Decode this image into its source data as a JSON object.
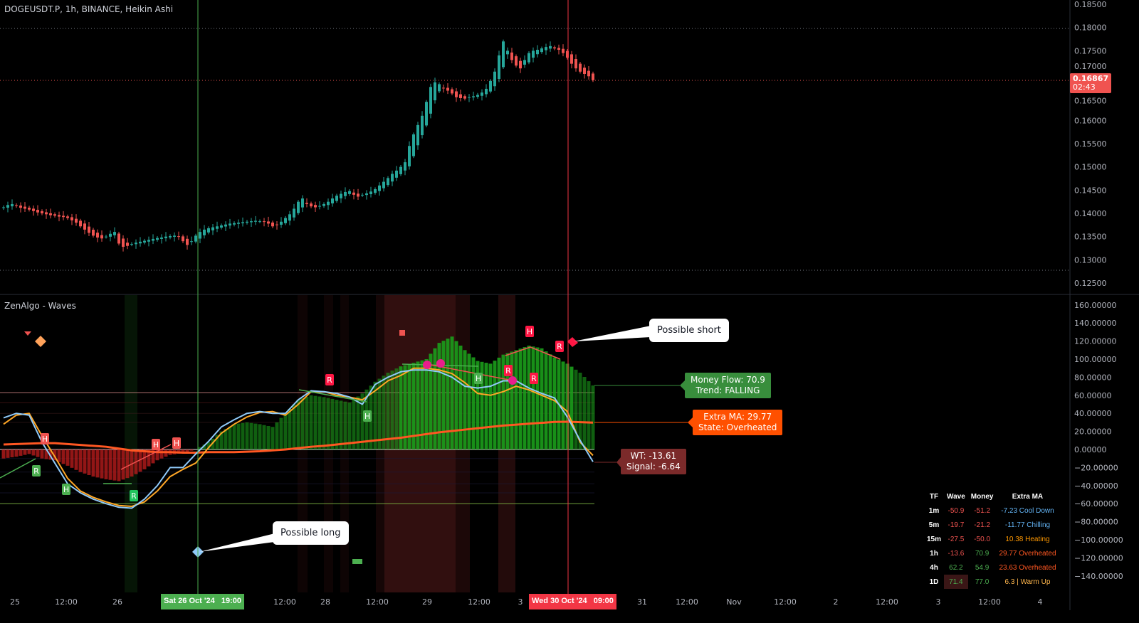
{
  "header": {
    "symbol_title": "DOGEUSDT.P, 1h, BINANCE, Heikin Ashi",
    "indicator_title": "ZenAlgo - Waves"
  },
  "price_axis": {
    "ticks": [
      "0.18500",
      "0.18000",
      "0.17500",
      "0.17000",
      "0.16500",
      "0.16000",
      "0.15500",
      "0.15000",
      "0.14500",
      "0.14000",
      "0.13500",
      "0.13000",
      "0.12500"
    ],
    "last_price": "0.16867",
    "countdown": "02:43"
  },
  "osc_axis": {
    "ticks": [
      "160.00000",
      "140.00000",
      "120.00000",
      "100.00000",
      "80.00000",
      "60.00000",
      "40.00000",
      "20.00000",
      "0.00000",
      "−20.00000",
      "−40.00000",
      "−60.00000",
      "−80.00000",
      "−100.00000",
      "−120.00000",
      "−140.00000"
    ]
  },
  "time_axis": {
    "ticks": [
      "25",
      "12:00",
      "26",
      "12:00",
      "28",
      "12:00",
      "29",
      "12:00",
      "3",
      "31",
      "12:00",
      "Nov",
      "12:00",
      "2",
      "12:00",
      "3",
      "12:00",
      "4"
    ],
    "cursor_left": "Sat 26 Oct '24   19:00",
    "cursor_right": "Wed 30 Oct '24   09:00"
  },
  "colors": {
    "up": "#26a69a",
    "down": "#ef5350",
    "wt": "#90caf9",
    "signal": "#ffa726",
    "extra_ma": "#ff5722",
    "mf_up": "#1b9e1b",
    "mf_down": "#b71c1c"
  },
  "chart_data": [
    {
      "type": "candlestick",
      "style": "Heikin Ashi",
      "ylim": [
        0.125,
        0.185
      ],
      "closes": [
        0.1413,
        0.1418,
        0.142,
        0.1416,
        0.1412,
        0.141,
        0.1408,
        0.1405,
        0.1402,
        0.14,
        0.1398,
        0.1396,
        0.1395,
        0.1393,
        0.1392,
        0.139,
        0.1385,
        0.138,
        0.1372,
        0.1365,
        0.1358,
        0.1352,
        0.1348,
        0.1346,
        0.135,
        0.1356,
        0.136,
        0.1335,
        0.1328,
        0.133,
        0.1334,
        0.1337,
        0.1339,
        0.1341,
        0.1343,
        0.1345,
        0.1347,
        0.1348,
        0.135,
        0.1351,
        0.1352,
        0.135,
        0.134,
        0.1332,
        0.134,
        0.1352,
        0.136,
        0.1365,
        0.1368,
        0.137,
        0.1372,
        0.1374,
        0.1376,
        0.1378,
        0.1379,
        0.138,
        0.1381,
        0.1382,
        0.1383,
        0.1384,
        0.1383,
        0.1382,
        0.1378,
        0.1372,
        0.1375,
        0.1382,
        0.139,
        0.1398,
        0.141,
        0.1425,
        0.1432,
        0.142,
        0.1415,
        0.1413,
        0.1416,
        0.142,
        0.1425,
        0.1432,
        0.1438,
        0.1442,
        0.1446,
        0.1448,
        0.144,
        0.1436,
        0.144,
        0.1443,
        0.1447,
        0.1452,
        0.146,
        0.1468,
        0.1476,
        0.1485,
        0.1492,
        0.15,
        0.151,
        0.1545,
        0.157,
        0.159,
        0.161,
        0.164,
        0.1672,
        0.1682,
        0.1678,
        0.167,
        0.1664,
        0.1658,
        0.165,
        0.1648,
        0.1647,
        0.165,
        0.1652,
        0.1655,
        0.166,
        0.1668,
        0.1685,
        0.1705,
        0.174,
        0.177,
        0.175,
        0.173,
        0.1718,
        0.1712,
        0.173,
        0.1745,
        0.175,
        0.1752,
        0.1755,
        0.1758,
        0.176,
        0.1755,
        0.1752,
        0.1745,
        0.1735,
        0.1722,
        0.1712,
        0.1705,
        0.17,
        0.1695,
        0.16867
      ]
    },
    {
      "type": "line",
      "name": "ZenAlgo - Waves",
      "ylim": [
        -150,
        170
      ],
      "wt": [
        35,
        40,
        38,
        8,
        -15,
        -38,
        -48,
        -55,
        -60,
        -64,
        -65,
        -55,
        -40,
        -20,
        -20,
        -5,
        9,
        25,
        33,
        40,
        42,
        40,
        40,
        55,
        65,
        64,
        62,
        58,
        50,
        72,
        80,
        86,
        88,
        88,
        86,
        80,
        70,
        68,
        70,
        76,
        76,
        68,
        62,
        57,
        36,
        10,
        -13.6
      ],
      "signal": [
        28,
        38,
        40,
        15,
        -8,
        -32,
        -46,
        -53,
        -58,
        -62,
        -63,
        -58,
        -46,
        -30,
        -22,
        -15,
        2,
        18,
        28,
        36,
        41,
        42,
        38,
        50,
        64,
        64,
        60,
        58,
        55,
        65,
        76,
        82,
        90,
        90,
        88,
        84,
        74,
        62,
        60,
        64,
        70,
        66,
        60,
        54,
        42,
        8,
        -6.6
      ],
      "extra_ma": [
        5.5,
        6,
        6.5,
        7,
        7,
        6,
        5,
        4,
        3,
        1,
        -1,
        -2,
        -3,
        -3,
        -3.5,
        -3.5,
        -3,
        -3,
        -3,
        -2.5,
        -2,
        -1,
        0,
        1.5,
        3,
        4,
        5.5,
        7,
        8.5,
        10,
        11.5,
        13,
        15,
        17,
        19,
        20.5,
        22,
        23.5,
        25,
        26.5,
        27.5,
        28.5,
        29.5,
        30.5,
        30.7,
        30.2,
        29.77
      ],
      "money_flow": [
        -10,
        -8,
        -5,
        -10,
        -12,
        -18,
        -25,
        -30,
        -33,
        -35,
        -30,
        -22,
        -12,
        -6,
        -4,
        0,
        8,
        20,
        28,
        30,
        28,
        25,
        40,
        55,
        60,
        58,
        55,
        52,
        62,
        75,
        85,
        92,
        96,
        100,
        118,
        125,
        110,
        98,
        95,
        105,
        110,
        115,
        112,
        102,
        95,
        85,
        70.9
      ],
      "levels": [
        63,
        0,
        -60
      ],
      "markers": [
        "H",
        "H",
        "H",
        "R",
        "H",
        "R",
        "H",
        "R",
        "H",
        "R",
        "R",
        "R"
      ]
    }
  ],
  "labels": {
    "money_flow": "Money Flow: 70.9",
    "trend": "Trend:  FALLING",
    "extra_ma": "Extra MA: 29.77",
    "state": "State: Overheated",
    "wt": "WT: -13.61",
    "signal": "Signal: -6.64",
    "possible_short": "Possible short",
    "possible_long": "Possible long"
  },
  "table": {
    "headers": [
      "TF",
      "Wave",
      "Money",
      "Extra MA"
    ],
    "rows": [
      {
        "tf": "1m",
        "wave": "-50.9",
        "money": "-51.2",
        "ma": "-7.23 Cool Down",
        "wc": "#ef5350",
        "mc": "#ef5350",
        "ac": "#64b5f6"
      },
      {
        "tf": "5m",
        "wave": "-19.7",
        "money": "-21.2",
        "ma": "-11.77 Chilling",
        "wc": "#ef5350",
        "mc": "#ef5350",
        "ac": "#64b5f6"
      },
      {
        "tf": "15m",
        "wave": "-27.5",
        "money": "-50.0",
        "ma": "10.38 Heating",
        "wc": "#ef5350",
        "mc": "#ef5350",
        "ac": "#ff9800"
      },
      {
        "tf": "1h",
        "wave": "-13.6",
        "money": "70.9",
        "ma": "29.77 Overheated",
        "wc": "#ef5350",
        "mc": "#4caf50",
        "ac": "#ff5722"
      },
      {
        "tf": "4h",
        "wave": "62.2",
        "money": "54.9",
        "ma": "23.63 Overheated",
        "wc": "#4caf50",
        "mc": "#4caf50",
        "ac": "#ff5722"
      },
      {
        "tf": "1D",
        "wave": "71.4",
        "money": "77.0",
        "ma": "6.3 | Warm Up",
        "wc": "#4caf50",
        "mc": "#4caf50",
        "ac": "#ffb74d"
      }
    ]
  }
}
